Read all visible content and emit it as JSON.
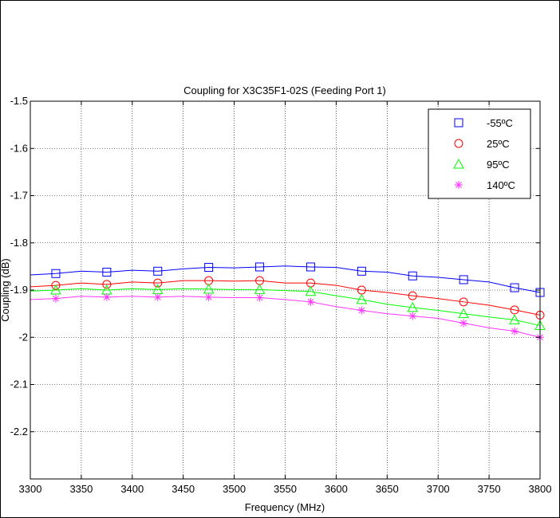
{
  "chart_data": {
    "type": "line",
    "title": "Coupling for X3C35F1-02S (Feeding Port 1)",
    "xlabel": "Frequency (MHz)",
    "ylabel": "Coupling (dB)",
    "xlim": [
      3300,
      3800
    ],
    "ylim": [
      -2.3,
      -1.5
    ],
    "xticks": [
      3300,
      3350,
      3400,
      3450,
      3500,
      3550,
      3600,
      3650,
      3700,
      3750,
      3800
    ],
    "yticks": [
      -1.5,
      -1.6,
      -1.7,
      -1.8,
      -1.9,
      -2.0,
      -2.1,
      -2.2
    ],
    "ytick_labels": [
      "-1.5",
      "-1.6",
      "-1.7",
      "-1.8",
      "-1.9",
      "-2",
      "-2.1",
      "-2.2"
    ],
    "grid": true,
    "legend_position": "top-right",
    "x": [
      3300,
      3325,
      3350,
      3375,
      3400,
      3425,
      3450,
      3475,
      3500,
      3525,
      3550,
      3575,
      3600,
      3625,
      3650,
      3675,
      3700,
      3725,
      3750,
      3775,
      3800
    ],
    "series": [
      {
        "name": "-55ºC",
        "color": "#0000ff",
        "marker": "square",
        "values": [
          -1.868,
          -1.865,
          -1.86,
          -1.862,
          -1.858,
          -1.86,
          -1.855,
          -1.852,
          -1.853,
          -1.851,
          -1.849,
          -1.851,
          -1.852,
          -1.86,
          -1.862,
          -1.87,
          -1.873,
          -1.878,
          -1.883,
          -1.895,
          -1.905
        ]
      },
      {
        "name": "25ºC",
        "color": "#ff0000",
        "marker": "circle",
        "values": [
          -1.893,
          -1.89,
          -1.885,
          -1.888,
          -1.883,
          -1.885,
          -1.88,
          -1.88,
          -1.881,
          -1.88,
          -1.885,
          -1.885,
          -1.89,
          -1.9,
          -1.905,
          -1.912,
          -1.918,
          -1.925,
          -1.932,
          -1.942,
          -1.953
        ]
      },
      {
        "name": "95ºC",
        "color": "#00ff00",
        "marker": "triangle",
        "values": [
          -1.902,
          -1.9,
          -1.897,
          -1.9,
          -1.897,
          -1.899,
          -1.897,
          -1.898,
          -1.899,
          -1.899,
          -1.901,
          -1.903,
          -1.912,
          -1.92,
          -1.93,
          -1.937,
          -1.943,
          -1.95,
          -1.957,
          -1.963,
          -1.975
        ]
      },
      {
        "name": "140ºC",
        "color": "#ff33ff",
        "marker": "star",
        "values": [
          -1.92,
          -1.918,
          -1.913,
          -1.915,
          -1.913,
          -1.915,
          -1.913,
          -1.915,
          -1.916,
          -1.916,
          -1.92,
          -1.925,
          -1.935,
          -1.943,
          -1.95,
          -1.955,
          -1.96,
          -1.97,
          -1.98,
          -1.987,
          -2.0
        ]
      }
    ]
  }
}
